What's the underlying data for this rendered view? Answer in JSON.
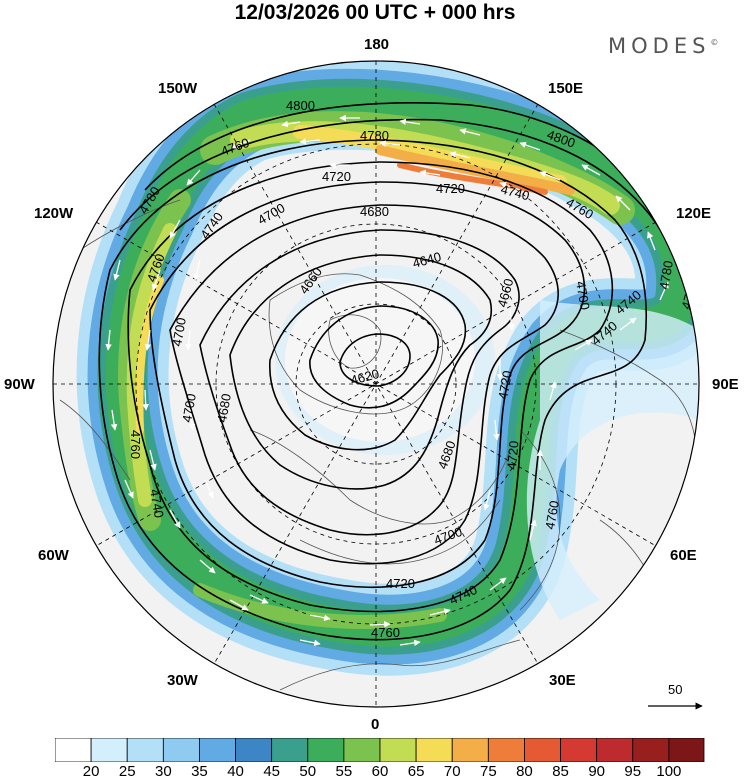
{
  "title": "12/03/2026  00 UTC  + 000 hrs",
  "brand": "MODES",
  "brand_mark": "©",
  "longitude_labels": {
    "top": "180",
    "top_left": "150W",
    "top_right": "150E",
    "upper_left": "120W",
    "upper_right": "120E",
    "left": "90W",
    "right": "90E",
    "lower_left": "60W",
    "lower_right": "60E",
    "bottom_left": "30W",
    "bottom_right": "30E",
    "bottom": "0"
  },
  "contour_labels": [
    "4800",
    "4780",
    "4760",
    "4720",
    "4740",
    "4760",
    "4800",
    "4780",
    "4700",
    "4680",
    "4740",
    "4720",
    "4640",
    "4660",
    "4760",
    "4780",
    "4740",
    "4700",
    "4620",
    "4680",
    "4680",
    "4700",
    "4720",
    "4760",
    "4740",
    "4760",
    "4700",
    "4720",
    "4740",
    "4760",
    "4700",
    "4660",
    "4720",
    "4740",
    "4780"
  ],
  "colorbar": {
    "ticks": [
      "20",
      "25",
      "30",
      "35",
      "40",
      "45",
      "50",
      "55",
      "60",
      "65",
      "70",
      "75",
      "80",
      "85",
      "90",
      "95",
      "100"
    ],
    "colors": [
      "#ffffff",
      "#d4effc",
      "#b4e0f7",
      "#8fcaf0",
      "#62aae3",
      "#3d86c6",
      "#3aa08d",
      "#3cae5b",
      "#7bc24f",
      "#c2dc53",
      "#f5dc57",
      "#f3ae48",
      "#ef7d3a",
      "#e65a33",
      "#d43a32",
      "#be2b2f",
      "#97201f"
    ]
  },
  "scale_vector": {
    "label": "50"
  },
  "icons": [
    "wind-arrow-icon"
  ]
}
